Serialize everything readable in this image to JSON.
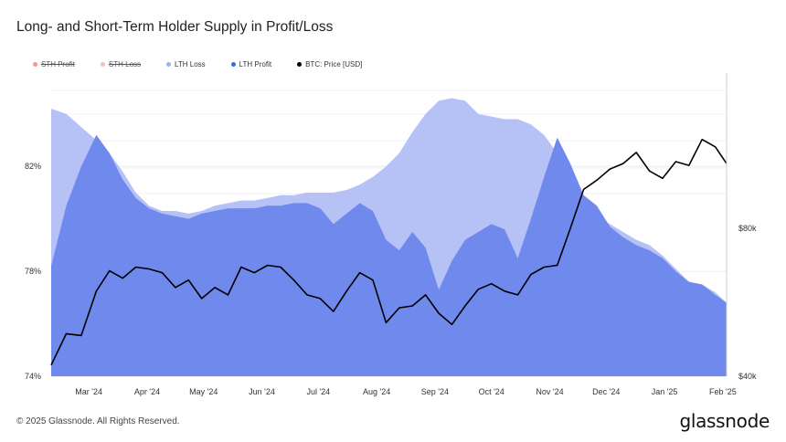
{
  "title": "Long- and Short-Term Holder Supply in Profit/Loss",
  "legend": [
    {
      "label": "STH Profit",
      "color": "#e8412f",
      "disabled": true
    },
    {
      "label": "STH Loss",
      "color": "#f08a80",
      "disabled": true
    },
    {
      "label": "LTH Loss",
      "color": "#9fb0f5",
      "disabled": false
    },
    {
      "label": "LTH Profit",
      "color": "#3f68e8",
      "disabled": false
    },
    {
      "label": "BTC: Price [USD]",
      "color": "#000000",
      "disabled": false
    }
  ],
  "footer": "© 2025 Glassnode. All Rights Reserved.",
  "brand": "glassnode",
  "chart_data": {
    "type": "area",
    "x": [
      "2024-02-10",
      "2024-02-18",
      "2024-02-26",
      "2024-03-05",
      "2024-03-12",
      "2024-03-19",
      "2024-03-26",
      "2024-04-02",
      "2024-04-09",
      "2024-04-16",
      "2024-04-23",
      "2024-04-30",
      "2024-05-07",
      "2024-05-14",
      "2024-05-21",
      "2024-05-28",
      "2024-06-04",
      "2024-06-11",
      "2024-06-18",
      "2024-06-25",
      "2024-07-02",
      "2024-07-09",
      "2024-07-16",
      "2024-07-23",
      "2024-07-30",
      "2024-08-06",
      "2024-08-13",
      "2024-08-20",
      "2024-08-27",
      "2024-09-03",
      "2024-09-10",
      "2024-09-17",
      "2024-09-24",
      "2024-10-01",
      "2024-10-08",
      "2024-10-15",
      "2024-10-22",
      "2024-10-29",
      "2024-11-05",
      "2024-11-12",
      "2024-11-19",
      "2024-11-26",
      "2024-12-03",
      "2024-12-10",
      "2024-12-17",
      "2024-12-24",
      "2024-12-31",
      "2025-01-07",
      "2025-01-14",
      "2025-01-21",
      "2025-01-28",
      "2025-02-03"
    ],
    "series": [
      {
        "name": "LTH Loss",
        "color": "#b6c2f6",
        "values": [
          84.2,
          84.0,
          83.5,
          83.0,
          82.5,
          81.8,
          81.0,
          80.5,
          80.3,
          80.3,
          80.2,
          80.3,
          80.5,
          80.6,
          80.7,
          80.7,
          80.8,
          80.9,
          80.9,
          81.0,
          81.0,
          81.0,
          81.1,
          81.3,
          81.6,
          82.0,
          82.5,
          83.3,
          84.0,
          84.5,
          84.6,
          84.5,
          84.0,
          83.9,
          83.8,
          83.8,
          83.6,
          83.2,
          82.5,
          81.5,
          80.5,
          80.1,
          79.8,
          79.5,
          79.2,
          79.0,
          78.6,
          78.1,
          77.6,
          77.5,
          77.2,
          76.8
        ]
      },
      {
        "name": "LTH Profit",
        "color": "#7089ec",
        "values": [
          78.2,
          80.5,
          82.0,
          83.2,
          82.5,
          81.5,
          80.8,
          80.4,
          80.2,
          80.1,
          80.0,
          80.2,
          80.3,
          80.4,
          80.4,
          80.4,
          80.5,
          80.5,
          80.6,
          80.6,
          80.4,
          79.8,
          80.2,
          80.6,
          80.3,
          79.2,
          78.8,
          79.5,
          78.9,
          77.3,
          78.4,
          79.2,
          79.5,
          79.8,
          79.6,
          78.5,
          80.0,
          81.6,
          83.1,
          82.1,
          80.9,
          80.5,
          79.7,
          79.3,
          79.0,
          78.8,
          78.5,
          78.0,
          77.6,
          77.5,
          77.1,
          76.8
        ]
      },
      {
        "name": "BTC: Price [USD]",
        "color": "#000000",
        "axis": "right",
        "values": [
          43000,
          51500,
          51000,
          63000,
          68500,
          66500,
          69500,
          69000,
          68000,
          64000,
          66000,
          61000,
          64000,
          62000,
          69500,
          68000,
          70000,
          69500,
          66000,
          62000,
          61000,
          57500,
          63000,
          68000,
          66000,
          54500,
          58500,
          59000,
          62000,
          57000,
          54000,
          59000,
          63500,
          65000,
          63000,
          62000,
          67500,
          69500,
          70000,
          80000,
          90500,
          93000,
          96000,
          97500,
          100500,
          95500,
          93500,
          98000,
          97000,
          104000,
          102000,
          97500
        ]
      }
    ],
    "y_left_ticks": [
      "74%",
      "78%",
      "82%"
    ],
    "y_right_ticks": [
      "$40k",
      "$80k"
    ],
    "x_ticks": [
      "Mar '24",
      "Apr '24",
      "May '24",
      "Jun '24",
      "Jul '24",
      "Aug '24",
      "Sep '24",
      "Oct '24",
      "Nov '24",
      "Dec '24",
      "Jan '25",
      "Feb '25"
    ],
    "ylim_left": [
      74,
      85
    ],
    "ylim_right": [
      40000,
      118000
    ],
    "grid": true,
    "legend_position": "top-left"
  }
}
